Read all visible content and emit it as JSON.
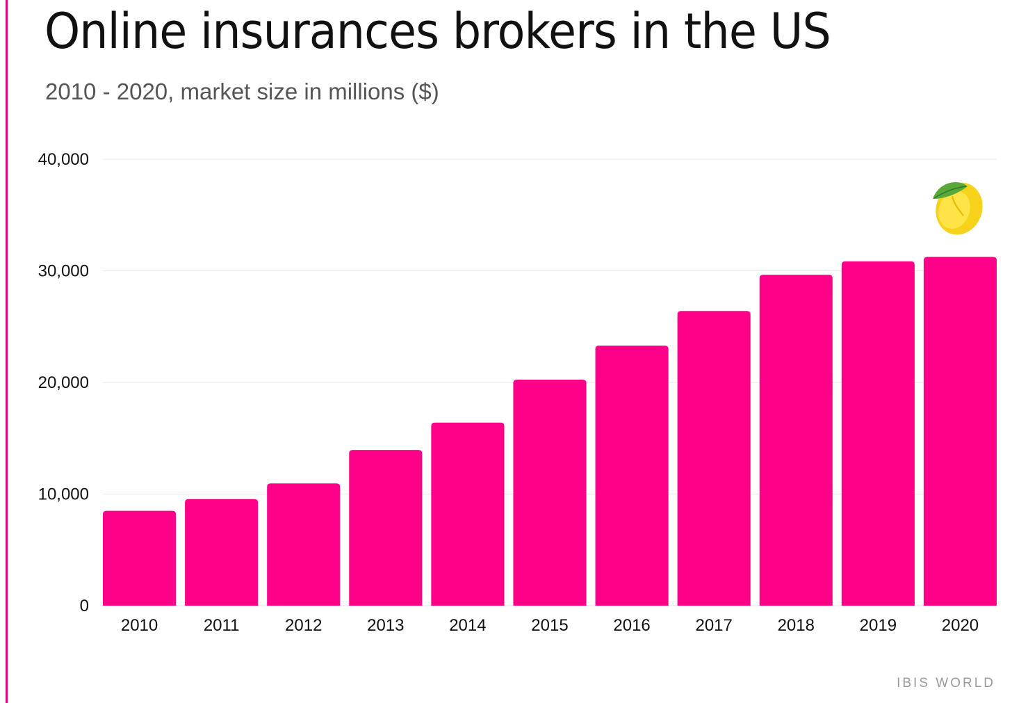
{
  "chart_data": {
    "type": "bar",
    "title": "Online insurances brokers in the US",
    "subtitle": "2010 - 2020, market size in millions ($)",
    "xlabel": "",
    "ylabel": "",
    "categories": [
      "2010",
      "2011",
      "2012",
      "2013",
      "2014",
      "2015",
      "2016",
      "2017",
      "2018",
      "2019",
      "2020"
    ],
    "values": [
      8500,
      9550,
      10950,
      13950,
      16400,
      20250,
      23300,
      26400,
      29650,
      30850,
      31250
    ],
    "ylim": [
      0,
      40000
    ],
    "yticks": [
      0,
      10000,
      20000,
      30000,
      40000
    ],
    "ytick_labels": [
      "0",
      "10,000",
      "20,000",
      "30,000",
      "40,000"
    ],
    "grid": true,
    "bar_color": "#ff0088",
    "source": "IBIS WORLD"
  },
  "decoration": {
    "icon": "lemon-icon"
  }
}
